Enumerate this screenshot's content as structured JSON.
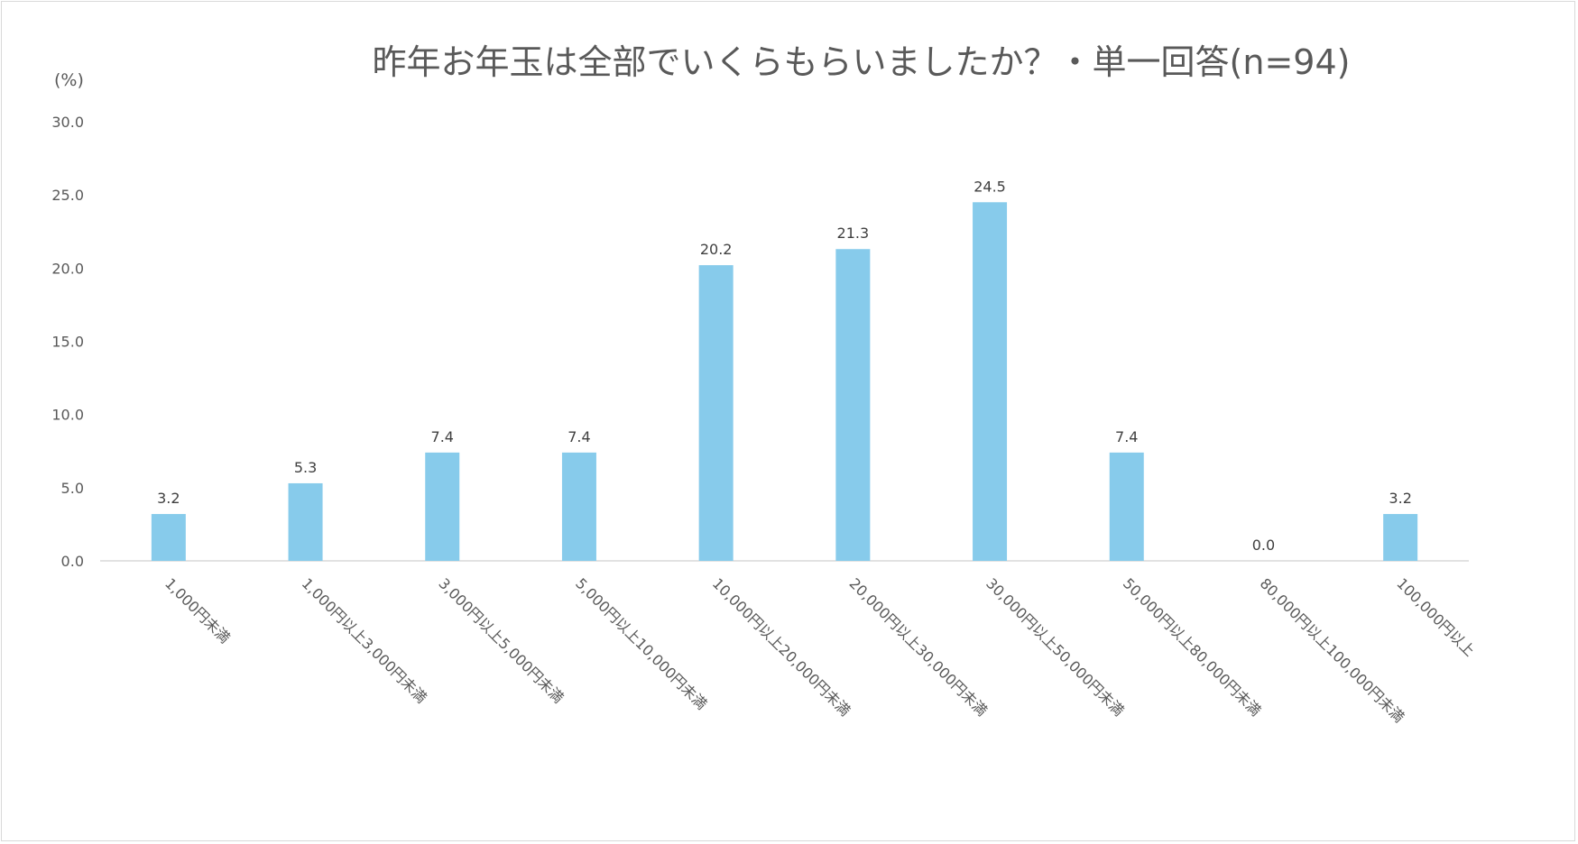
{
  "chart_data": {
    "type": "bar",
    "title": "昨年お年玉は全部でいくらもらいましたか？・単一回答(n=94)",
    "unit_label": "(%)",
    "xlabel": "",
    "ylabel": "",
    "ylim": [
      0,
      30
    ],
    "yticks": [
      "0.0",
      "5.0",
      "10.0",
      "15.0",
      "20.0",
      "25.0",
      "30.0"
    ],
    "grid": false,
    "categories": [
      "1,000円未満",
      "1,000円以上3,000円未満",
      "3,000円以上5,000円未満",
      "5,000円以上10,000円未満",
      "10,000円以上20,000円未満",
      "20,000円以上30,000円未満",
      "30,000円以上50,000円未満",
      "50,000円以上80,000円未満",
      "80,000円以上100,000円未満",
      "100,000円以上"
    ],
    "values": [
      3.2,
      5.3,
      7.4,
      7.4,
      20.2,
      21.3,
      24.5,
      7.4,
      0.0,
      3.2
    ],
    "value_labels": [
      "3.2",
      "5.3",
      "7.4",
      "7.4",
      "20.2",
      "21.3",
      "24.5",
      "7.4",
      "0.0",
      "3.2"
    ],
    "bar_color": "#87cbeb"
  }
}
